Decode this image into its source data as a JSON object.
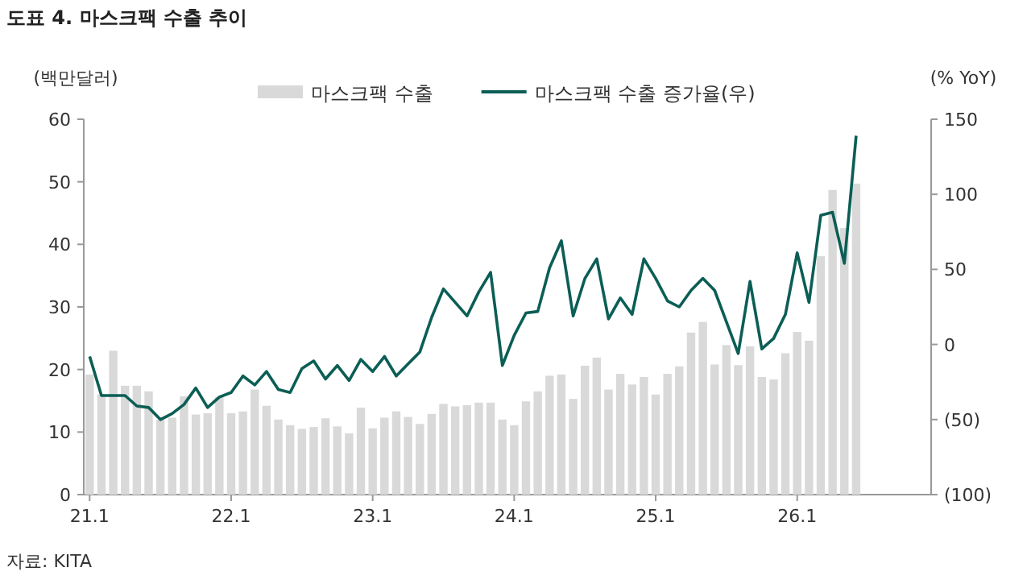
{
  "chart_data": {
    "type": "bar",
    "title": "도표 4. 마스크팩 수출 추이",
    "ylabel": "(백만달러)",
    "y2label": "(% YoY)",
    "annotations": [
      "자료: KITA"
    ],
    "categories": [
      "21.1",
      null,
      null,
      null,
      null,
      null,
      null,
      null,
      null,
      null,
      null,
      null,
      "22.1",
      null,
      null,
      null,
      null,
      null,
      null,
      null,
      null,
      null,
      null,
      null,
      "23.1",
      null,
      null,
      null,
      null,
      null,
      null,
      null,
      null,
      null,
      null,
      null,
      "24.1",
      null,
      null,
      null,
      null,
      null,
      null,
      null,
      null,
      null,
      null,
      null,
      "25.1",
      null,
      null,
      null,
      null,
      null,
      null,
      null,
      null,
      null,
      null,
      null,
      "26.1",
      null,
      null,
      null,
      null,
      null
    ],
    "series": [
      {
        "name": "마스크팩 수출",
        "type": "bar",
        "color": "#d9d9d9",
        "values": [
          19.2,
          16,
          23,
          17.4,
          17.4,
          16.5,
          12,
          12.3,
          15.7,
          12.8,
          13,
          15.6,
          13,
          13.3,
          16.8,
          14.2,
          12,
          11.1,
          10.5,
          10.8,
          12.2,
          10.9,
          9.8,
          13.9,
          10.6,
          12.3,
          13.3,
          12.4,
          11.3,
          12.9,
          14.5,
          14.1,
          14.3,
          14.7,
          14.7,
          12,
          11.1,
          14.9,
          16.5,
          19,
          19.2,
          15.3,
          20.6,
          21.9,
          16.8,
          19.3,
          17.6,
          18.8,
          16,
          19.3,
          20.5,
          25.9,
          27.6,
          20.8,
          23.9,
          20.7,
          23.7,
          18.8,
          18.4,
          22.6,
          26,
          24.6,
          38.1,
          48.7,
          42.6,
          49.7
        ]
      },
      {
        "name": "마스크팩 수출 증가율(우)",
        "type": "line",
        "axis": "y2",
        "color": "#0b5e55",
        "values": [
          -8,
          -34,
          -34,
          -34,
          -41,
          -42,
          -50,
          -46,
          -40,
          -29,
          -42,
          -35,
          -32,
          -21,
          -27,
          -18,
          -30,
          -32,
          -16,
          -11,
          -23,
          -14,
          -24,
          -10,
          -18,
          -8,
          -21,
          -13,
          -5,
          18,
          37,
          28,
          19,
          35,
          48,
          -14,
          6,
          21,
          22,
          51,
          69,
          19,
          44,
          57,
          17,
          31,
          20,
          57,
          44,
          29,
          25,
          36,
          44,
          36,
          15,
          -6,
          42,
          -3,
          4,
          20,
          61,
          28,
          86,
          88,
          54,
          139
        ]
      }
    ],
    "ylim": [
      0,
      60
    ],
    "yticks": [
      0,
      10,
      20,
      30,
      40,
      50,
      60
    ],
    "y2lim": [
      -100,
      150
    ],
    "y2ticks": [
      {
        "value": -100,
        "label": "(100)"
      },
      {
        "value": -50,
        "label": "(50)"
      },
      0,
      50,
      100,
      150
    ],
    "legend": "top",
    "grid": false
  }
}
